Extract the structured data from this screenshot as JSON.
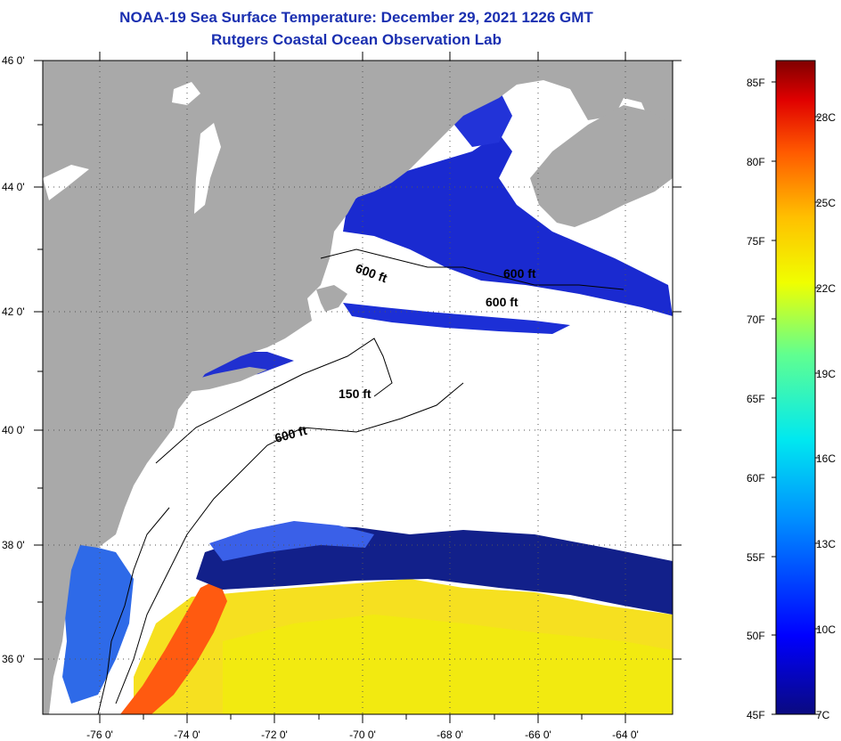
{
  "title": {
    "line1": "NOAA-19 Sea Surface Temperature:  December 29, 2021 1226 GMT",
    "line2": "Rutgers Coastal Ocean Observation Lab"
  },
  "lat_labels": [
    "46 0'",
    "44 0'",
    "42 0'",
    "40 0'",
    "38 0'",
    "36 0'"
  ],
  "lon_labels": [
    "-76 0'",
    "-74 0'",
    "-72 0'",
    "-70 0'",
    "-68 0'",
    "-66 0'",
    "-64 0'"
  ],
  "contour_labels": [
    "600 ft",
    "600 ft",
    "600 ft",
    "150 ft",
    "600 ft"
  ],
  "colorbar": {
    "fahrenheit": [
      "85F",
      "80F",
      "75F",
      "70F",
      "65F",
      "60F",
      "55F",
      "50F",
      "45F"
    ],
    "celsius": [
      "28C",
      "25C",
      "22C",
      "19C",
      "16C",
      "13C",
      "10C",
      "7C"
    ]
  },
  "colors": {
    "land": "#a9a9a9",
    "cloud": "#ffffff",
    "title": "#1a2fb0"
  }
}
